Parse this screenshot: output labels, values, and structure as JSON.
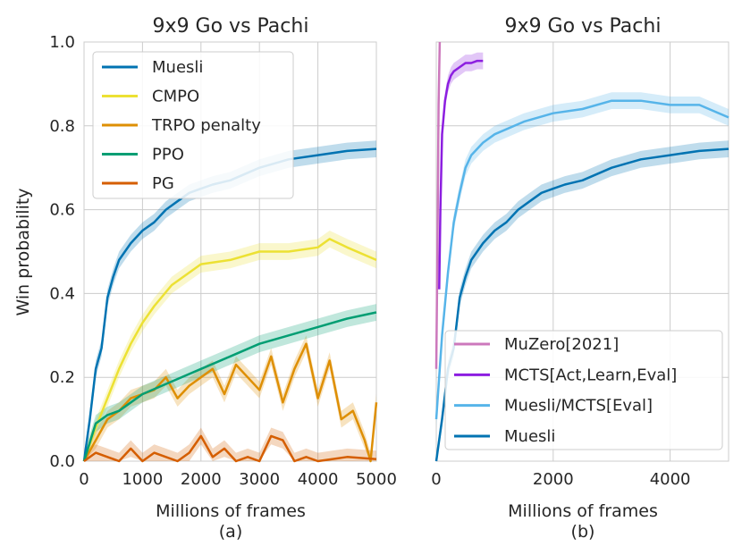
{
  "chart_data": [
    {
      "type": "line",
      "title": "9x9 Go vs Pachi",
      "xlabel": "Millions of frames",
      "ylabel": "Win probability",
      "caption": "(a)",
      "xlim": [
        0,
        5000
      ],
      "ylim": [
        0,
        1.0
      ],
      "xticks": [
        0,
        1000,
        2000,
        3000,
        4000,
        5000
      ],
      "yticks": [
        0.0,
        0.2,
        0.4,
        0.6,
        0.8,
        1.0
      ],
      "ytick_labels": [
        "0.0",
        "0.2",
        "0.4",
        "0.6",
        "0.8",
        "1.0"
      ],
      "grid": true,
      "legend_position": "top-left",
      "series": [
        {
          "name": "Muesli",
          "color": "#0173b2",
          "x": [
            0,
            100,
            200,
            300,
            400,
            500,
            600,
            800,
            1000,
            1200,
            1400,
            1600,
            1800,
            2000,
            2200,
            2500,
            3000,
            3500,
            4000,
            4500,
            5000
          ],
          "y": [
            0.0,
            0.1,
            0.22,
            0.27,
            0.39,
            0.44,
            0.48,
            0.52,
            0.55,
            0.57,
            0.6,
            0.62,
            0.64,
            0.65,
            0.66,
            0.67,
            0.7,
            0.72,
            0.73,
            0.74,
            0.745
          ]
        },
        {
          "name": "CMPO",
          "color": "#ece133",
          "x": [
            0,
            200,
            400,
            600,
            800,
            1000,
            1200,
            1500,
            2000,
            2500,
            3000,
            3500,
            4000,
            4200,
            4500,
            5000
          ],
          "y": [
            0.0,
            0.08,
            0.15,
            0.22,
            0.28,
            0.33,
            0.37,
            0.42,
            0.47,
            0.48,
            0.5,
            0.5,
            0.51,
            0.53,
            0.51,
            0.48
          ]
        },
        {
          "name": "TRPO penalty",
          "color": "#de8f05",
          "x": [
            0,
            200,
            400,
            600,
            800,
            1000,
            1200,
            1400,
            1600,
            1800,
            2000,
            2200,
            2400,
            2600,
            2800,
            3000,
            3200,
            3400,
            3600,
            3800,
            4000,
            4200,
            4400,
            4600,
            4800,
            4900,
            5000
          ],
          "y": [
            0.0,
            0.05,
            0.1,
            0.12,
            0.15,
            0.16,
            0.17,
            0.2,
            0.15,
            0.18,
            0.2,
            0.22,
            0.16,
            0.23,
            0.2,
            0.17,
            0.25,
            0.14,
            0.22,
            0.28,
            0.15,
            0.24,
            0.1,
            0.12,
            0.05,
            0.0,
            0.14
          ]
        },
        {
          "name": "PPO",
          "color": "#029e73",
          "x": [
            0,
            200,
            400,
            600,
            800,
            1000,
            1500,
            2000,
            2500,
            3000,
            3500,
            4000,
            4500,
            5000
          ],
          "y": [
            0.0,
            0.09,
            0.11,
            0.12,
            0.14,
            0.16,
            0.19,
            0.22,
            0.25,
            0.28,
            0.3,
            0.32,
            0.34,
            0.355
          ]
        },
        {
          "name": "PG",
          "color": "#d55e00",
          "x": [
            0,
            200,
            400,
            600,
            800,
            1000,
            1200,
            1400,
            1600,
            1800,
            2000,
            2200,
            2400,
            2600,
            2800,
            3000,
            3200,
            3400,
            3600,
            3800,
            4000,
            4500,
            5000
          ],
          "y": [
            0.0,
            0.02,
            0.01,
            0.0,
            0.03,
            0.0,
            0.02,
            0.01,
            0.0,
            0.02,
            0.06,
            0.01,
            0.03,
            0.0,
            0.01,
            0.0,
            0.06,
            0.05,
            0.0,
            0.01,
            0.0,
            0.01,
            0.005
          ]
        }
      ]
    },
    {
      "type": "line",
      "title": "9x9 Go vs Pachi",
      "xlabel": "Millions of frames",
      "caption": "(b)",
      "xlim": [
        0,
        5000
      ],
      "ylim": [
        0,
        1.0
      ],
      "xticks": [
        0,
        2000,
        4000
      ],
      "grid": true,
      "legend_position": "bottom-right",
      "series": [
        {
          "name": "MuZero[2021]",
          "color": "#cc78bc",
          "x": [
            0,
            20,
            40,
            60
          ],
          "y": [
            0.22,
            0.5,
            0.85,
            1.0
          ]
        },
        {
          "name": "MCTS[Act,Learn,Eval]",
          "color": "#8c1ee0",
          "x": [
            50,
            70,
            100,
            150,
            200,
            250,
            300,
            400,
            500,
            600,
            700,
            800
          ],
          "y": [
            0.41,
            0.6,
            0.78,
            0.86,
            0.9,
            0.92,
            0.93,
            0.94,
            0.95,
            0.95,
            0.955,
            0.955
          ]
        },
        {
          "name": "Muesli/MCTS[Eval]",
          "color": "#56b4e9",
          "x": [
            0,
            100,
            200,
            300,
            400,
            500,
            600,
            800,
            1000,
            1500,
            2000,
            2500,
            3000,
            3500,
            4000,
            4500,
            5000
          ],
          "y": [
            0.1,
            0.3,
            0.45,
            0.57,
            0.64,
            0.7,
            0.73,
            0.76,
            0.78,
            0.81,
            0.83,
            0.84,
            0.86,
            0.86,
            0.85,
            0.85,
            0.82
          ]
        },
        {
          "name": "Muesli",
          "color": "#0173b2",
          "x": [
            0,
            100,
            200,
            300,
            400,
            500,
            600,
            800,
            1000,
            1200,
            1400,
            1600,
            1800,
            2000,
            2200,
            2500,
            3000,
            3500,
            4000,
            4500,
            5000
          ],
          "y": [
            0.0,
            0.1,
            0.22,
            0.27,
            0.39,
            0.44,
            0.48,
            0.52,
            0.55,
            0.57,
            0.6,
            0.62,
            0.64,
            0.65,
            0.66,
            0.67,
            0.7,
            0.72,
            0.73,
            0.74,
            0.745
          ]
        }
      ]
    }
  ]
}
